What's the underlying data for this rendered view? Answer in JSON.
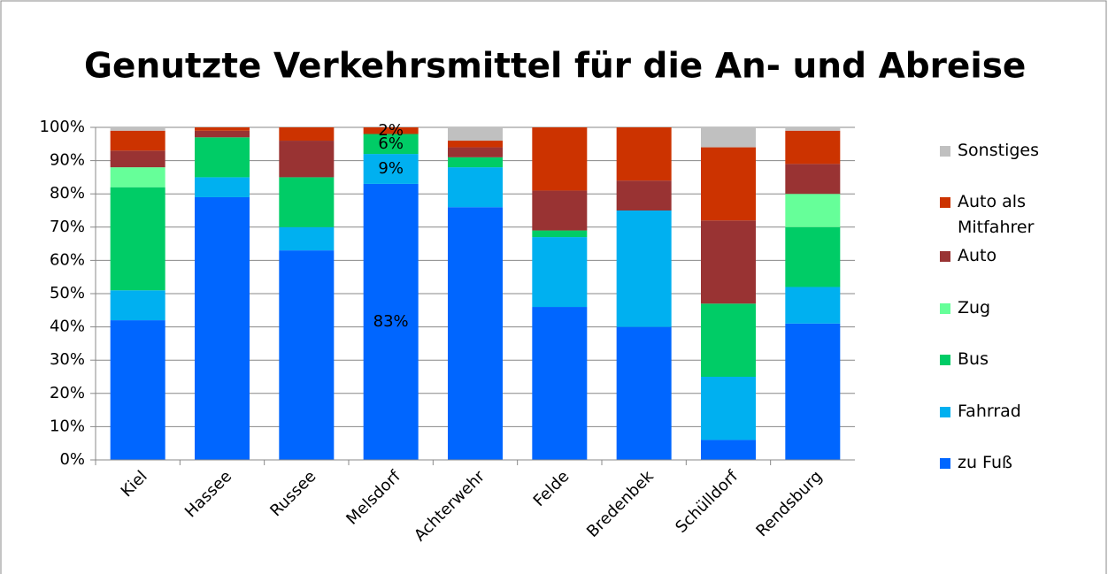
{
  "chart_data": {
    "type": "stacked_bar",
    "title": "Genutzte Verkehrsmittel für die An- und Abreise",
    "categories": [
      "Kiel",
      "Hassee",
      "Russee",
      "Melsdorf",
      "Achterwehr",
      "Felde",
      "Bredenbek",
      "Schülldorf",
      "Rendsburg"
    ],
    "series": [
      {
        "name": "zu Fuß",
        "color": "#0066ff",
        "values": [
          42,
          79,
          63,
          83,
          76,
          46,
          40,
          6,
          41
        ],
        "value_labels": [
          null,
          null,
          null,
          "83%",
          null,
          null,
          null,
          null,
          null
        ]
      },
      {
        "name": "Fahrrad",
        "color": "#00b0f0",
        "values": [
          9,
          6,
          7,
          9,
          12,
          21,
          35,
          19,
          11
        ],
        "value_labels": [
          null,
          null,
          null,
          "9%",
          null,
          null,
          null,
          null,
          null
        ]
      },
      {
        "name": "Bus",
        "color": "#00cc66",
        "values": [
          31,
          12,
          15,
          6,
          3,
          2,
          0,
          22,
          18
        ],
        "value_labels": [
          null,
          null,
          null,
          "6%",
          null,
          null,
          null,
          null,
          null
        ]
      },
      {
        "name": "Zug",
        "color": "#66ff99",
        "values": [
          6,
          0,
          0,
          0,
          0,
          0,
          0,
          0,
          10
        ]
      },
      {
        "name": "Auto",
        "color": "#993333",
        "values": [
          5,
          2,
          11,
          0,
          3,
          12,
          9,
          25,
          9
        ]
      },
      {
        "name": "Auto als Mitfahrer",
        "color": "#cc3300",
        "values": [
          6,
          1,
          4,
          2,
          2,
          19,
          16,
          22,
          10
        ],
        "value_labels": [
          null,
          null,
          null,
          "2%",
          null,
          null,
          null,
          null,
          null
        ]
      },
      {
        "name": "Sonstiges",
        "color": "#c0c0c0",
        "values": [
          1,
          0,
          0,
          0,
          4,
          0,
          0,
          6,
          1
        ]
      }
    ],
    "ylim": [
      0,
      100
    ],
    "yticks": [
      {
        "value": 0,
        "label": "0%"
      },
      {
        "value": 10,
        "label": "10%"
      },
      {
        "value": 20,
        "label": "20%"
      },
      {
        "value": 30,
        "label": "30%"
      },
      {
        "value": 40,
        "label": "40%"
      },
      {
        "value": 50,
        "label": "50%"
      },
      {
        "value": 60,
        "label": "60%"
      },
      {
        "value": 70,
        "label": "70%"
      },
      {
        "value": 80,
        "label": "80%"
      },
      {
        "value": 90,
        "label": "90%"
      },
      {
        "value": 100,
        "label": "100%"
      }
    ],
    "grid": true,
    "legend": "right"
  }
}
